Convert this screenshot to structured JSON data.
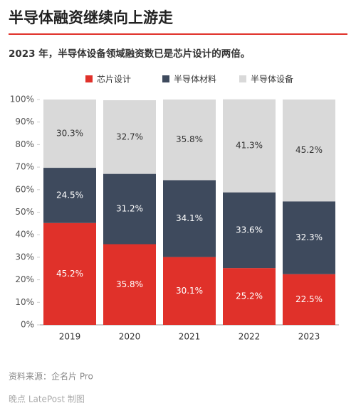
{
  "chart_data": {
    "type": "stacked_bar",
    "title": "半导体融资继续向上游走",
    "subtitle": "2023 年，半导体设备领域融资数已是芯片设计的两倍。",
    "categories": [
      "2019",
      "2020",
      "2021",
      "2022",
      "2023"
    ],
    "series": [
      {
        "name": "芯片设计",
        "color": "#e0312a",
        "values": [
          45.2,
          35.8,
          30.1,
          25.2,
          22.5
        ],
        "value_labels": [
          "45.2%",
          "35.8%",
          "30.1%",
          "25.2%",
          "22.5%"
        ]
      },
      {
        "name": "半导体材料",
        "color": "#3e4a5d",
        "values": [
          24.5,
          31.2,
          34.1,
          33.6,
          32.3
        ],
        "value_labels": [
          "24.5%",
          "31.2%",
          "34.1%",
          "33.6%",
          "32.3%"
        ]
      },
      {
        "name": "半导体设备",
        "color": "#d9d9d9",
        "values": [
          30.3,
          32.7,
          35.8,
          41.3,
          45.2
        ],
        "value_labels": [
          "30.3%",
          "32.7%",
          "35.8%",
          "41.3%",
          "45.2%"
        ]
      }
    ],
    "ylim": [
      0,
      100
    ],
    "yticks": [
      {
        "value": 0,
        "label": "0%"
      },
      {
        "value": 10,
        "label": "10%"
      },
      {
        "value": 20,
        "label": "20%"
      },
      {
        "value": 30,
        "label": "30%"
      },
      {
        "value": 40,
        "label": "40%"
      },
      {
        "value": 50,
        "label": "50%"
      },
      {
        "value": 60,
        "label": "60%"
      },
      {
        "value": 70,
        "label": "70%"
      },
      {
        "value": 80,
        "label": "80%"
      },
      {
        "value": 90,
        "label": "90%"
      },
      {
        "value": 100,
        "label": "100%"
      }
    ],
    "source": "资料来源：企名片 Pro",
    "credit": "晚点 LatePost 制图"
  }
}
